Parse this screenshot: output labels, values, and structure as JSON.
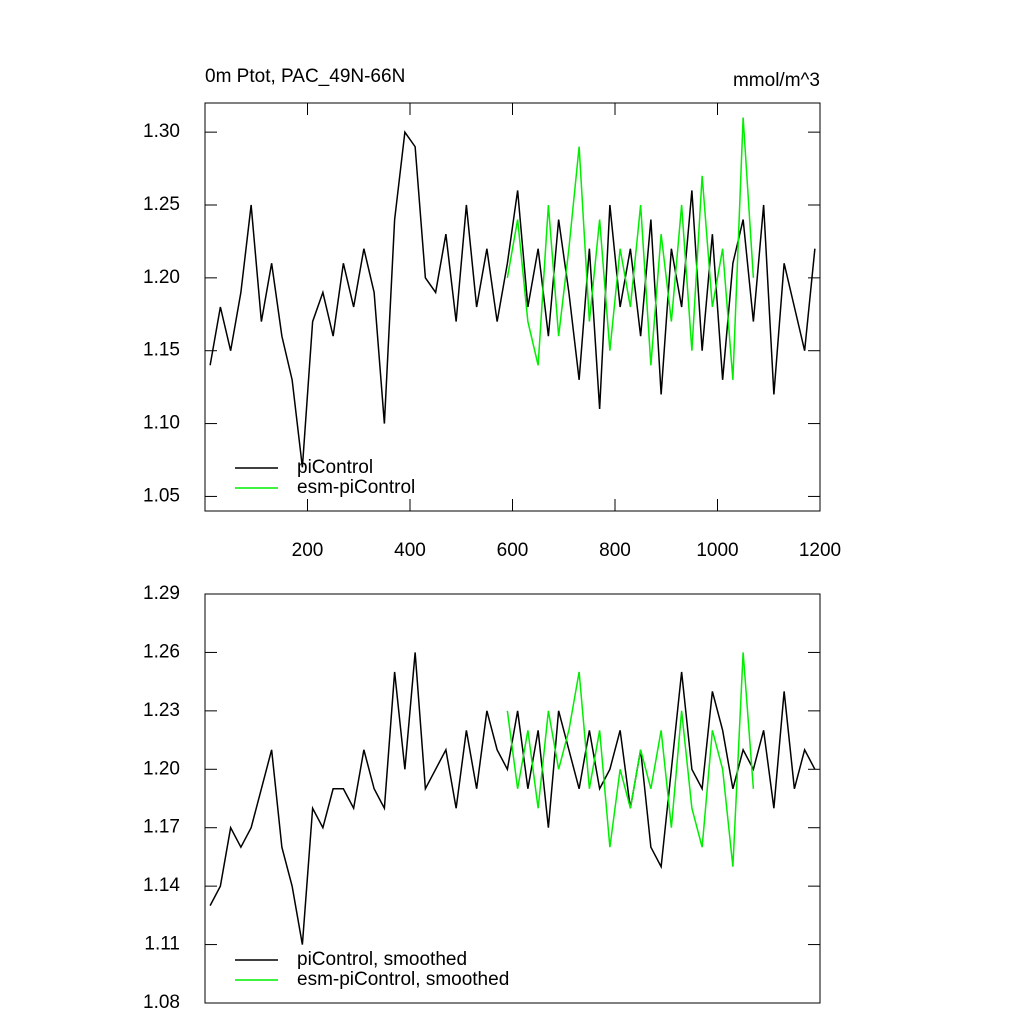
{
  "chart_data": [
    {
      "type": "line",
      "title": "0m Ptot, PAC_49N-66N",
      "units": "mmol/m^3",
      "x": [
        10,
        30,
        50,
        70,
        90,
        110,
        130,
        150,
        170,
        190,
        210,
        230,
        250,
        270,
        290,
        310,
        330,
        350,
        370,
        390,
        410,
        430,
        450,
        470,
        490,
        510,
        530,
        550,
        570,
        590,
        610,
        630,
        650,
        670,
        690,
        710,
        730,
        750,
        770,
        790,
        810,
        830,
        850,
        870,
        890,
        910,
        930,
        950,
        970,
        990,
        1010,
        1030,
        1050,
        1070,
        1090,
        1110,
        1130,
        1150,
        1170,
        1190
      ],
      "series": [
        {
          "name": "piControl",
          "color": "#000000",
          "values": [
            1.14,
            1.18,
            1.15,
            1.19,
            1.25,
            1.17,
            1.21,
            1.16,
            1.13,
            1.07,
            1.17,
            1.19,
            1.16,
            1.21,
            1.18,
            1.22,
            1.19,
            1.1,
            1.24,
            1.3,
            1.29,
            1.2,
            1.19,
            1.23,
            1.17,
            1.25,
            1.18,
            1.22,
            1.17,
            1.21,
            1.26,
            1.18,
            1.22,
            1.16,
            1.24,
            1.19,
            1.13,
            1.22,
            1.11,
            1.25,
            1.18,
            1.22,
            1.16,
            1.24,
            1.12,
            1.22,
            1.18,
            1.26,
            1.15,
            1.23,
            1.13,
            1.21,
            1.24,
            1.17,
            1.25,
            1.12,
            1.21,
            1.18,
            1.15,
            1.22
          ]
        },
        {
          "name": "esm-piControl",
          "color": "#00ee00",
          "values": [
            null,
            null,
            null,
            null,
            null,
            null,
            null,
            null,
            null,
            null,
            null,
            null,
            null,
            null,
            null,
            null,
            null,
            null,
            null,
            null,
            null,
            null,
            null,
            null,
            null,
            null,
            null,
            null,
            null,
            1.2,
            1.24,
            1.17,
            1.14,
            1.25,
            1.16,
            1.22,
            1.29,
            1.17,
            1.24,
            1.15,
            1.22,
            1.18,
            1.25,
            1.14,
            1.23,
            1.17,
            1.25,
            1.15,
            1.27,
            1.18,
            1.22,
            1.13,
            1.31,
            1.2,
            null,
            null,
            null,
            null,
            null,
            null
          ]
        }
      ],
      "xlim": [
        0,
        1200
      ],
      "xticks": [
        200,
        400,
        600,
        800,
        1000,
        1200
      ],
      "ylim": [
        1.04,
        1.32
      ],
      "yticks": [
        1.05,
        {
          "value": 1.1,
          "label": "1.10"
        },
        1.15,
        {
          "value": 1.2,
          "label": "1.20"
        },
        1.25,
        {
          "value": 1.3,
          "label": "1.30"
        }
      ]
    },
    {
      "type": "line",
      "x": [
        10,
        30,
        50,
        70,
        90,
        110,
        130,
        150,
        170,
        190,
        210,
        230,
        250,
        270,
        290,
        310,
        330,
        350,
        370,
        390,
        410,
        430,
        450,
        470,
        490,
        510,
        530,
        550,
        570,
        590,
        610,
        630,
        650,
        670,
        690,
        710,
        730,
        750,
        770,
        790,
        810,
        830,
        850,
        870,
        890,
        910,
        930,
        950,
        970,
        990,
        1010,
        1030,
        1050,
        1070,
        1090,
        1110,
        1130,
        1150,
        1170,
        1190
      ],
      "series": [
        {
          "name": "piControl, smoothed",
          "color": "#000000",
          "values": [
            1.13,
            1.14,
            1.17,
            1.16,
            1.17,
            1.19,
            1.21,
            1.16,
            1.14,
            1.11,
            1.18,
            1.17,
            1.19,
            1.19,
            1.18,
            1.21,
            1.19,
            1.18,
            1.25,
            1.2,
            1.26,
            1.19,
            1.2,
            1.21,
            1.18,
            1.22,
            1.19,
            1.23,
            1.21,
            1.2,
            1.23,
            1.19,
            1.22,
            1.17,
            1.23,
            1.21,
            1.19,
            1.22,
            1.19,
            1.2,
            1.22,
            1.18,
            1.21,
            1.16,
            1.15,
            1.2,
            1.25,
            1.2,
            1.19,
            1.24,
            1.22,
            1.19,
            1.21,
            1.2,
            1.22,
            1.18,
            1.24,
            1.19,
            1.21,
            1.2
          ]
        },
        {
          "name": "esm-piControl, smoothed",
          "color": "#00ee00",
          "values": [
            null,
            null,
            null,
            null,
            null,
            null,
            null,
            null,
            null,
            null,
            null,
            null,
            null,
            null,
            null,
            null,
            null,
            null,
            null,
            null,
            null,
            null,
            null,
            null,
            null,
            null,
            null,
            null,
            null,
            1.23,
            1.19,
            1.22,
            1.18,
            1.23,
            1.2,
            1.22,
            1.25,
            1.19,
            1.22,
            1.16,
            1.2,
            1.18,
            1.21,
            1.19,
            1.22,
            1.17,
            1.23,
            1.18,
            1.16,
            1.22,
            1.2,
            1.15,
            1.26,
            1.19,
            null,
            null,
            null,
            null,
            null,
            null
          ]
        }
      ],
      "xlim": [
        0,
        1200
      ],
      "ylim": [
        1.08,
        1.29
      ],
      "yticks": [
        1.08,
        1.11,
        1.14,
        1.17,
        {
          "value": 1.2,
          "label": "1.20"
        },
        1.23,
        1.26,
        1.29
      ]
    }
  ]
}
